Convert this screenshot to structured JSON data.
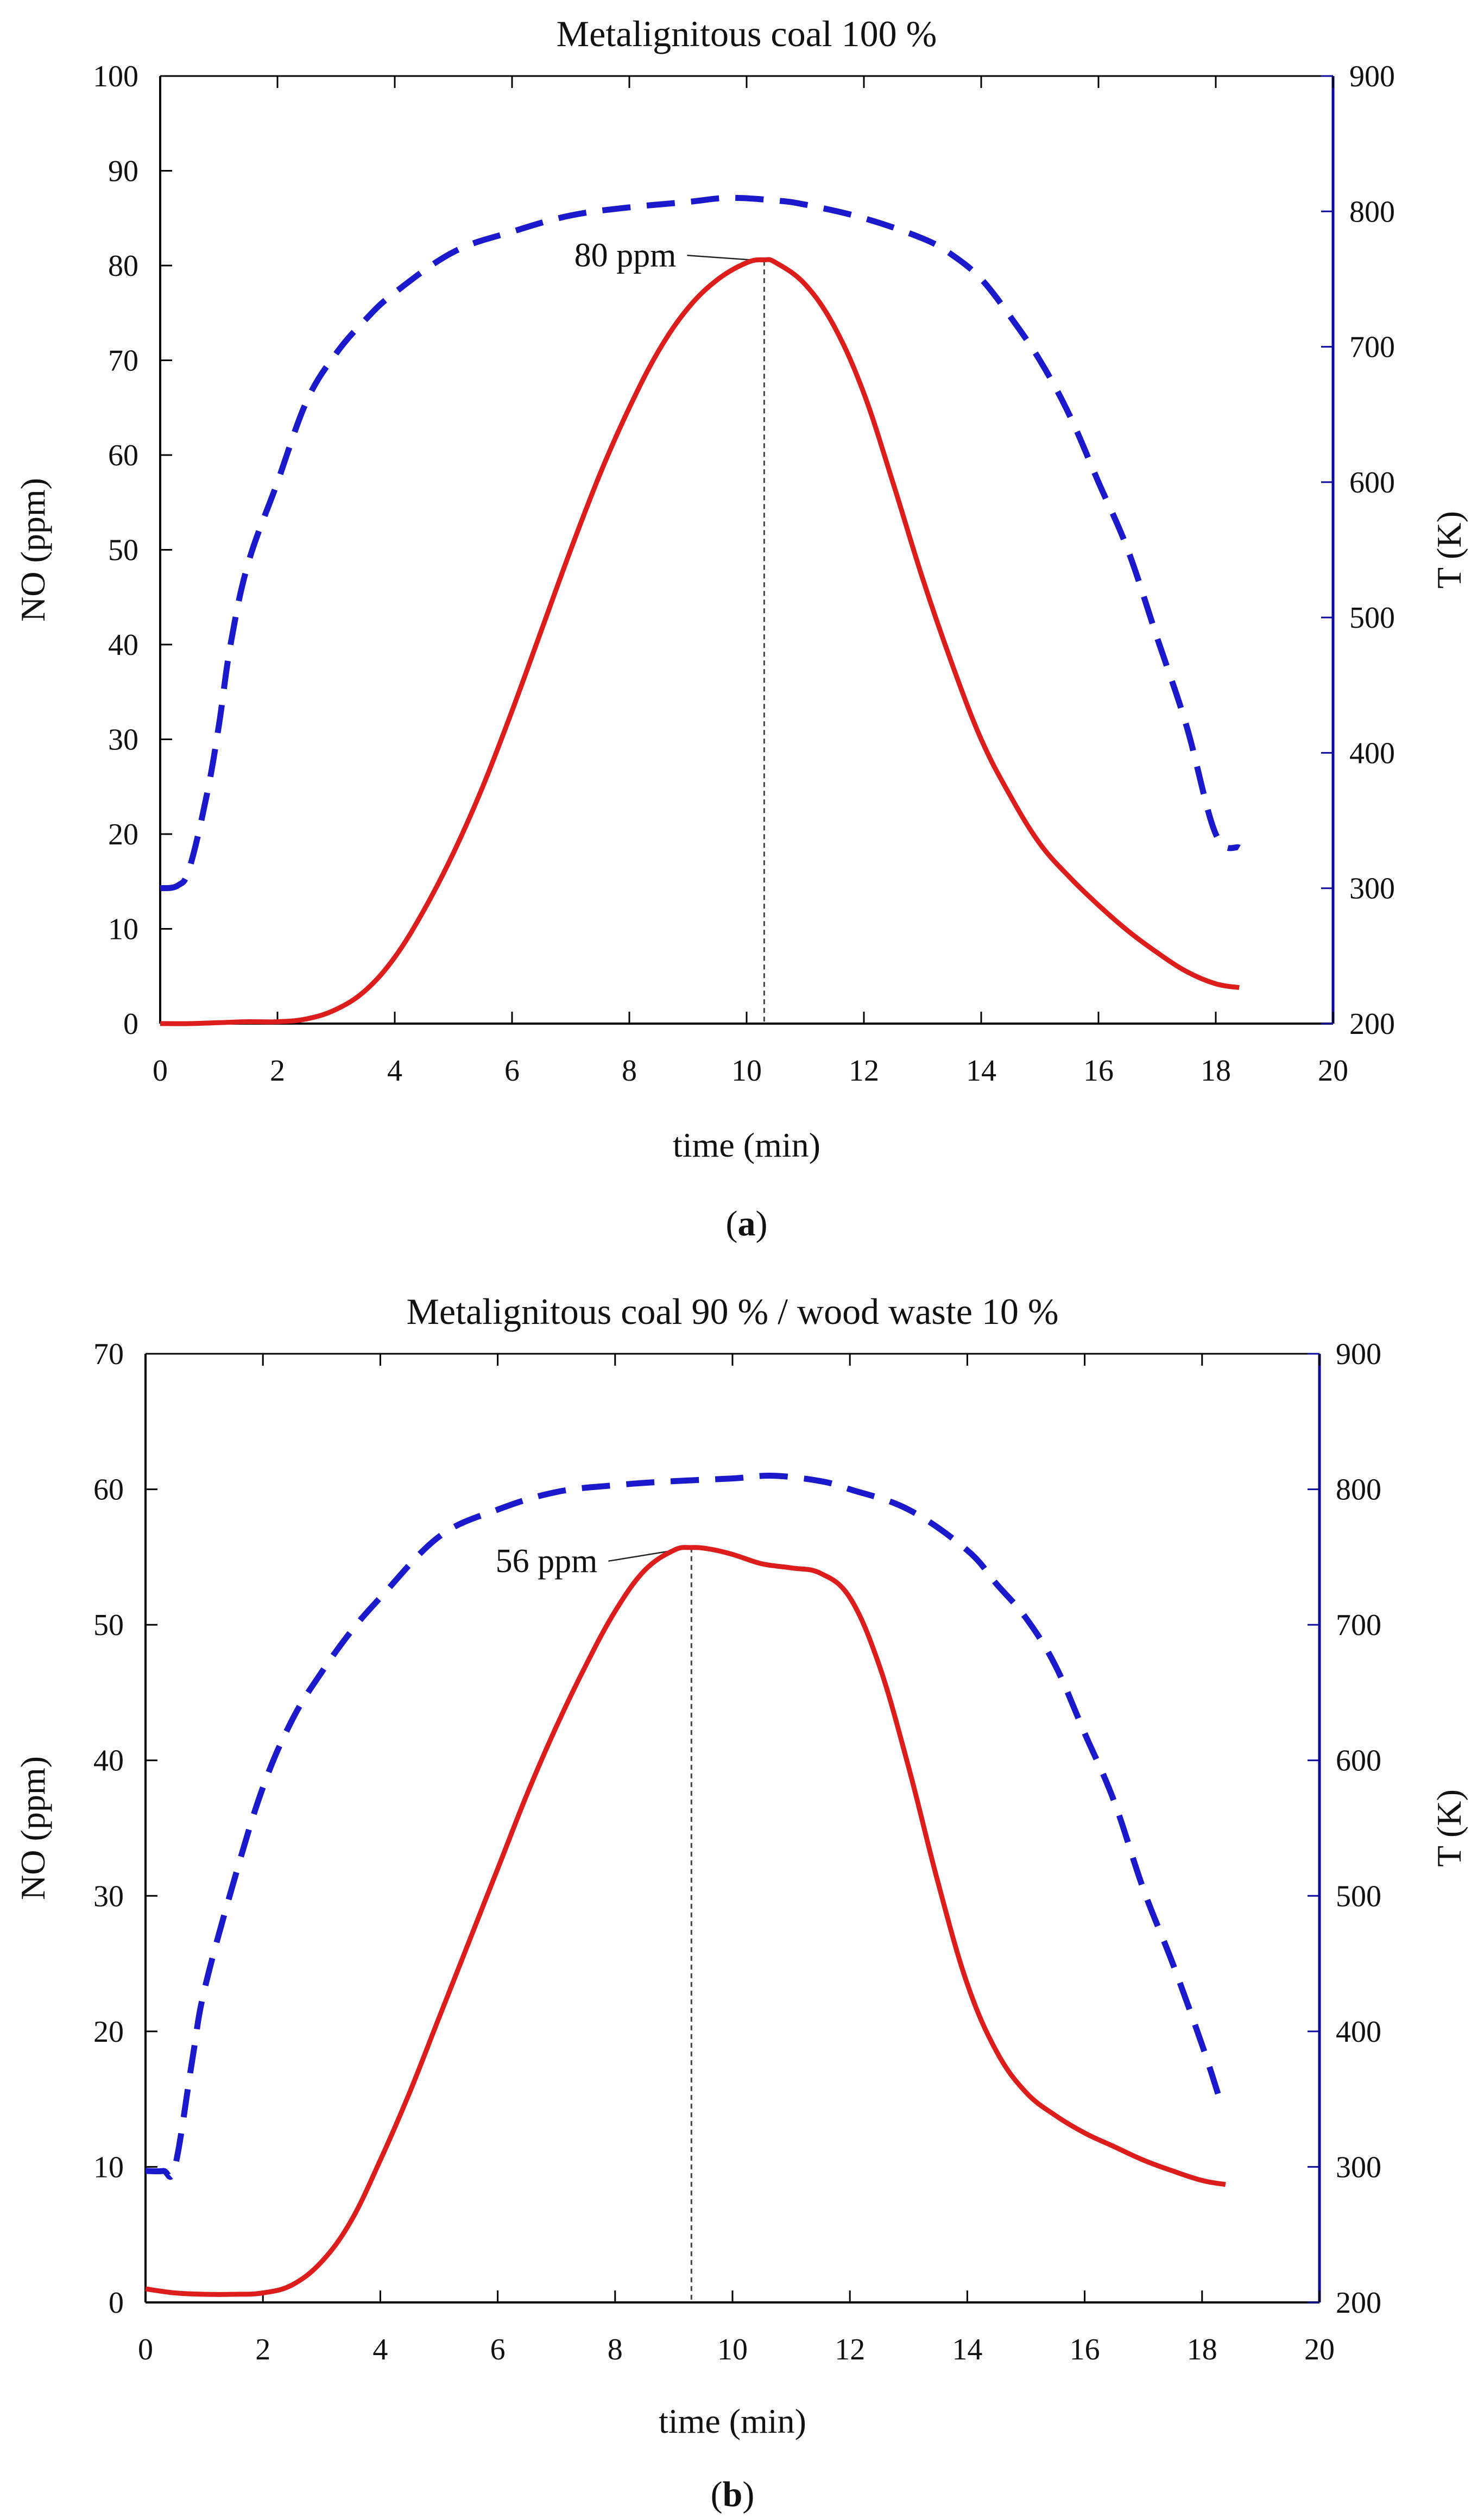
{
  "chart_data": [
    {
      "type": "line",
      "panel_label": "(a)",
      "panel_letter": "a",
      "title": "Metalignitous coal 100 %",
      "xlabel": "time (min)",
      "ylabel": "NO (ppm)",
      "y2label": "T (K)",
      "xlim": [
        0,
        20
      ],
      "ylim": [
        0,
        100
      ],
      "y2lim": [
        200,
        900
      ],
      "xticks": [
        0,
        2,
        4,
        6,
        8,
        10,
        12,
        14,
        16,
        18,
        20
      ],
      "yticks": [
        0,
        10,
        20,
        30,
        40,
        50,
        60,
        70,
        80,
        90,
        100
      ],
      "y2ticks": [
        200,
        300,
        400,
        500,
        600,
        700,
        800,
        900
      ],
      "annotation": {
        "text": "80 ppm",
        "x": 10.3,
        "y": 80.5,
        "text_x": 8.8,
        "text_y": 80.5
      },
      "series": [
        {
          "name": "NO",
          "axis": "left",
          "color": "#dd1c1c",
          "style": "solid",
          "x": [
            0,
            0.5,
            1,
            1.5,
            2,
            2.5,
            3,
            3.5,
            4,
            4.5,
            5,
            5.5,
            6,
            6.5,
            7,
            7.5,
            8,
            8.5,
            9,
            9.5,
            10,
            10.3,
            10.5,
            11,
            11.5,
            12,
            12.5,
            13,
            13.5,
            14,
            14.5,
            15,
            15.5,
            16,
            16.5,
            17,
            17.5,
            18,
            18.4
          ],
          "values": [
            0,
            0,
            0.1,
            0.2,
            0.2,
            0.5,
            1.5,
            3.5,
            7,
            12,
            18,
            25,
            33,
            41.5,
            50,
            58,
            65,
            71,
            75.5,
            78.5,
            80.3,
            80.6,
            80.3,
            78,
            73.5,
            66.5,
            57,
            47,
            38,
            30,
            24,
            19,
            15.5,
            12.5,
            9.8,
            7.5,
            5.5,
            4.2,
            3.8
          ]
        },
        {
          "name": "T",
          "axis": "right",
          "color": "#1a1acc",
          "style": "dashed",
          "x": [
            0,
            0.3,
            0.5,
            0.8,
            1,
            1.2,
            1.5,
            2,
            2.5,
            3,
            3.5,
            4,
            5,
            6,
            7,
            8,
            9,
            9.7,
            10.5,
            11,
            12,
            13,
            13.5,
            14,
            14.5,
            15,
            15.5,
            16,
            16.5,
            17,
            17.5,
            18,
            18.4
          ],
          "values": [
            300,
            302,
            315,
            370,
            420,
            480,
            540,
            600,
            660,
            695,
            720,
            740,
            770,
            785,
            797,
            803,
            807,
            810,
            808,
            805,
            795,
            780,
            768,
            750,
            722,
            690,
            650,
            600,
            550,
            485,
            420,
            340,
            330
          ]
        }
      ]
    },
    {
      "type": "line",
      "panel_label": "(b)",
      "panel_letter": "b",
      "title": "Metalignitous coal 90 % / wood waste 10 %",
      "xlabel": "time (min)",
      "ylabel": "NO (ppm)",
      "y2label": "T (K)",
      "xlim": [
        0,
        20
      ],
      "ylim": [
        0,
        70
      ],
      "y2lim": [
        200,
        900
      ],
      "xticks": [
        0,
        2,
        4,
        6,
        8,
        10,
        12,
        14,
        16,
        18,
        20
      ],
      "yticks": [
        0,
        10,
        20,
        30,
        40,
        50,
        60,
        70
      ],
      "y2ticks": [
        200,
        300,
        400,
        500,
        600,
        700,
        800,
        900
      ],
      "annotation": {
        "text": "56 ppm",
        "x": 9.3,
        "y": 55.7,
        "text_x": 7.7,
        "text_y": 54.3
      },
      "series": [
        {
          "name": "NO",
          "axis": "left",
          "color": "#dd1c1c",
          "style": "solid",
          "x": [
            0,
            0.5,
            1,
            1.5,
            2,
            2.5,
            3,
            3.5,
            4,
            4.5,
            5,
            5.5,
            6,
            6.5,
            7,
            7.5,
            8,
            8.5,
            9,
            9.3,
            9.6,
            10,
            10.5,
            11,
            11.5,
            12,
            12.5,
            13,
            13.5,
            14,
            14.5,
            15,
            15.5,
            16,
            16.5,
            17,
            17.5,
            18,
            18.4
          ],
          "values": [
            1,
            0.7,
            0.6,
            0.6,
            0.7,
            1.3,
            3,
            6,
            10.5,
            15.5,
            21,
            26.5,
            32,
            37.5,
            42.5,
            47,
            51,
            54,
            55.5,
            55.7,
            55.6,
            55.2,
            54.5,
            54.2,
            53.8,
            52,
            47,
            39.5,
            31,
            23.5,
            18.5,
            15.5,
            13.8,
            12.5,
            11.5,
            10.5,
            9.7,
            9,
            8.7
          ]
        },
        {
          "name": "T",
          "axis": "right",
          "color": "#1a1acc",
          "style": "dashed",
          "x": [
            0,
            0.3,
            0.5,
            0.8,
            1,
            1.5,
            2,
            2.5,
            3,
            3.5,
            4,
            5,
            6,
            7,
            8,
            9,
            10,
            10.7,
            11.5,
            12,
            13,
            14,
            14.5,
            15,
            15.5,
            16,
            16.5,
            17,
            17.5,
            18,
            18.3
          ],
          "values": [
            297,
            297,
            300,
            380,
            430,
            510,
            580,
            630,
            665,
            695,
            720,
            765,
            785,
            798,
            803,
            806,
            808,
            810,
            806,
            800,
            785,
            755,
            730,
            705,
            670,
            620,
            570,
            505,
            450,
            390,
            350
          ]
        }
      ]
    }
  ]
}
